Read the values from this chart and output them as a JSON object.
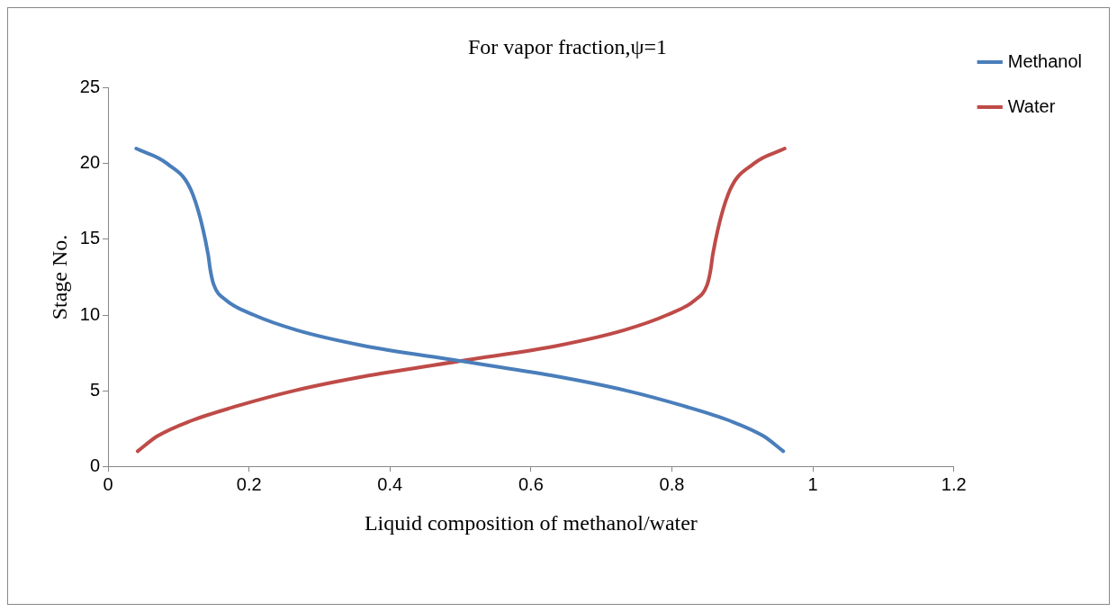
{
  "chart_data": {
    "type": "line",
    "title": "For vapor fraction,ψ=1",
    "xlabel": "Liquid composition of methanol/water",
    "ylabel": "Stage No.",
    "xlim": [
      0,
      1.2
    ],
    "xticks": [
      0,
      0.2,
      0.4,
      0.6,
      0.8,
      1,
      1.2
    ],
    "ylim": [
      0,
      25
    ],
    "yticks": [
      0,
      5,
      10,
      15,
      20,
      25
    ],
    "grid": false,
    "legend": "top right",
    "marker": "none",
    "line_style": "solid",
    "series": [
      {
        "name": "Methanol",
        "color": "#4a7ebb",
        "x": [
          0.04,
          0.084,
          0.12,
          0.142,
          0.145,
          0.15,
          0.167,
          0.207,
          0.268,
          0.36,
          0.495,
          0.63,
          0.736,
          0.816,
          0.883,
          0.93,
          0.958
        ],
        "values": [
          21,
          20,
          18,
          14,
          13,
          12,
          11,
          10,
          9,
          8,
          7,
          6,
          5,
          4,
          3,
          2,
          1
        ]
      },
      {
        "name": "Water",
        "color": "#be4b48",
        "x": [
          0.042,
          0.07,
          0.117,
          0.184,
          0.264,
          0.37,
          0.505,
          0.64,
          0.732,
          0.793,
          0.833,
          0.85,
          0.855,
          0.858,
          0.88,
          0.916,
          0.96
        ],
        "values": [
          1,
          2,
          3,
          4,
          5,
          6,
          7,
          8,
          9,
          10,
          11,
          12,
          13,
          14,
          18,
          20,
          21
        ]
      }
    ]
  }
}
